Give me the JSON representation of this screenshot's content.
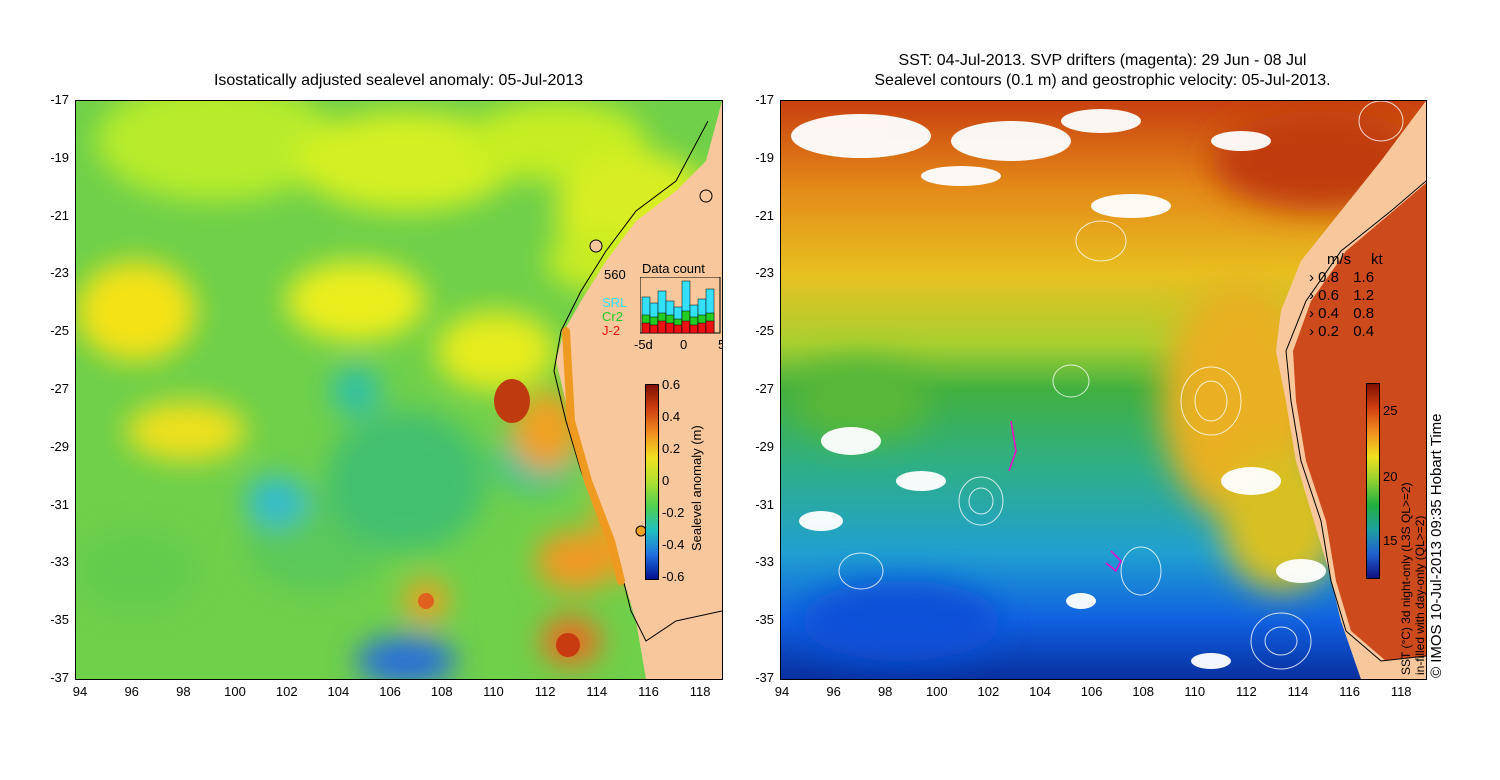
{
  "left": {
    "title": "Isostatically adjusted sealevel anomaly: 05-Jul-2013",
    "y_ticks": [
      "-17",
      "-19",
      "-21",
      "-23",
      "-25",
      "-27",
      "-29",
      "-31",
      "-33",
      "-35",
      "-37"
    ],
    "x_ticks": [
      "94",
      "96",
      "98",
      "100",
      "102",
      "104",
      "106",
      "108",
      "110",
      "112",
      "114",
      "116",
      "118"
    ],
    "colorbar": {
      "label": "Sealevel anomaly (m)",
      "ticks": [
        "0.6",
        "0.4",
        "0.2",
        "0",
        "-0.2",
        "-0.4",
        "-0.6"
      ]
    },
    "data_count": {
      "title": "Data count",
      "max_label": "560",
      "series_labels": [
        "SRL",
        "Cr2",
        "J-2"
      ],
      "series_colors": [
        "#33e0ff",
        "#22cc22",
        "#ee1111"
      ],
      "x_ticks": [
        "-5d",
        "0",
        "5"
      ]
    }
  },
  "right": {
    "title_line1": "SST: 04-Jul-2013. SVP drifters (magenta): 29 Jun - 08 Jul",
    "title_line2": "Sealevel contours (0.1 m) and geostrophic velocity: 05-Jul-2013.",
    "y_ticks": [
      "-17",
      "-19",
      "-21",
      "-23",
      "-25",
      "-27",
      "-29",
      "-31",
      "-33",
      "-35",
      "-37"
    ],
    "x_ticks": [
      "94",
      "96",
      "98",
      "100",
      "102",
      "104",
      "106",
      "108",
      "110",
      "112",
      "114",
      "116",
      "118"
    ],
    "velocity_legend": {
      "header_ms": "m/s",
      "header_kt": "kt",
      "rows": [
        {
          "ms": "0.8",
          "kt": "1.6"
        },
        {
          "ms": "0.6",
          "kt": "1.2"
        },
        {
          "ms": "0.4",
          "kt": "0.8"
        },
        {
          "ms": "0.2",
          "kt": "0.4"
        }
      ]
    },
    "colorbar": {
      "label_line1": "SST (°C) 3d night-only (L3S QL>=2)",
      "label_line2": "in-filled with day-only (QL>=2)",
      "ticks": [
        "25",
        "20",
        "15"
      ]
    },
    "credit": "© IMOS 10-Jul-2013 09:35 Hobart Time"
  },
  "colors": {
    "land": "#f8c89c",
    "anomaly_bg": "#7ad64a",
    "sst_bg": "#3cb47c"
  }
}
